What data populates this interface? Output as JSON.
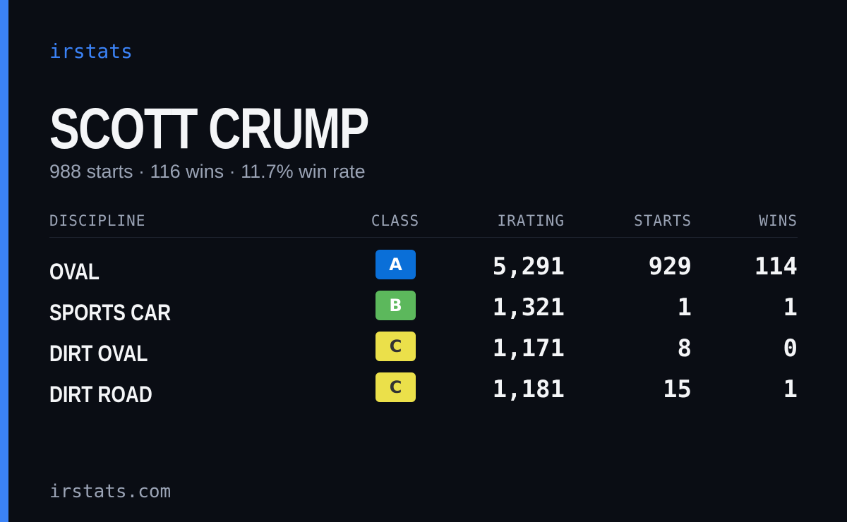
{
  "brand": "irstats",
  "player": {
    "name": "SCOTT CRUMP",
    "summary": "988 starts · 116 wins · 11.7% win rate"
  },
  "table": {
    "headers": [
      "DISCIPLINE",
      "CLASS",
      "IRATING",
      "STARTS",
      "WINS"
    ],
    "rows": [
      [
        "OVAL",
        "A",
        "5,291",
        "929",
        "114"
      ],
      [
        "SPORTS CAR",
        "B",
        "1,321",
        "1",
        "1"
      ],
      [
        "DIRT OVAL",
        "C",
        "1,171",
        "8",
        "0"
      ],
      [
        "DIRT ROAD",
        "C",
        "1,181",
        "15",
        "1"
      ]
    ]
  },
  "footer": "irstats.com"
}
